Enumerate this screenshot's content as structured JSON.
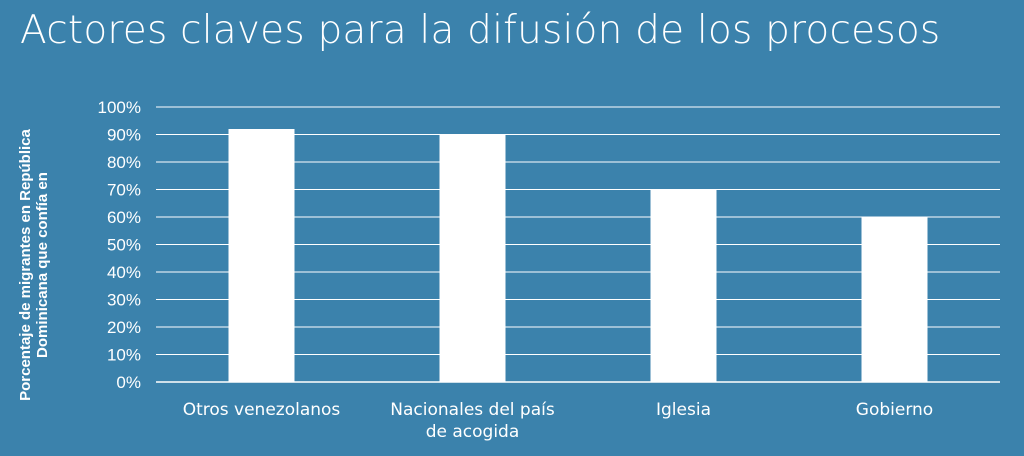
{
  "colors": {
    "background": "#3b82ac",
    "bar": "#ffffff",
    "gridline": "#ffffff",
    "text": "#ffffff"
  },
  "chart_data": {
    "type": "bar",
    "title": "Actores claves para la difusión de los procesos",
    "xlabel": "",
    "ylabel": "Porcentaje de migrantes en República Dominicana que confía en",
    "categories": [
      [
        "Otros venezolanos"
      ],
      [
        "Nacionales del país",
        "de acogida"
      ],
      [
        "Iglesia"
      ],
      [
        "Gobierno"
      ]
    ],
    "values": [
      92,
      90,
      70,
      60
    ],
    "ylim": [
      0,
      100
    ],
    "yticks": [
      0,
      10,
      20,
      30,
      40,
      50,
      60,
      70,
      80,
      90,
      100
    ],
    "ytick_labels": [
      "0%",
      "10%",
      "20%",
      "30%",
      "40%",
      "50%",
      "60%",
      "70%",
      "80%",
      "90%",
      "100%"
    ],
    "grid": true,
    "legend": "none"
  }
}
